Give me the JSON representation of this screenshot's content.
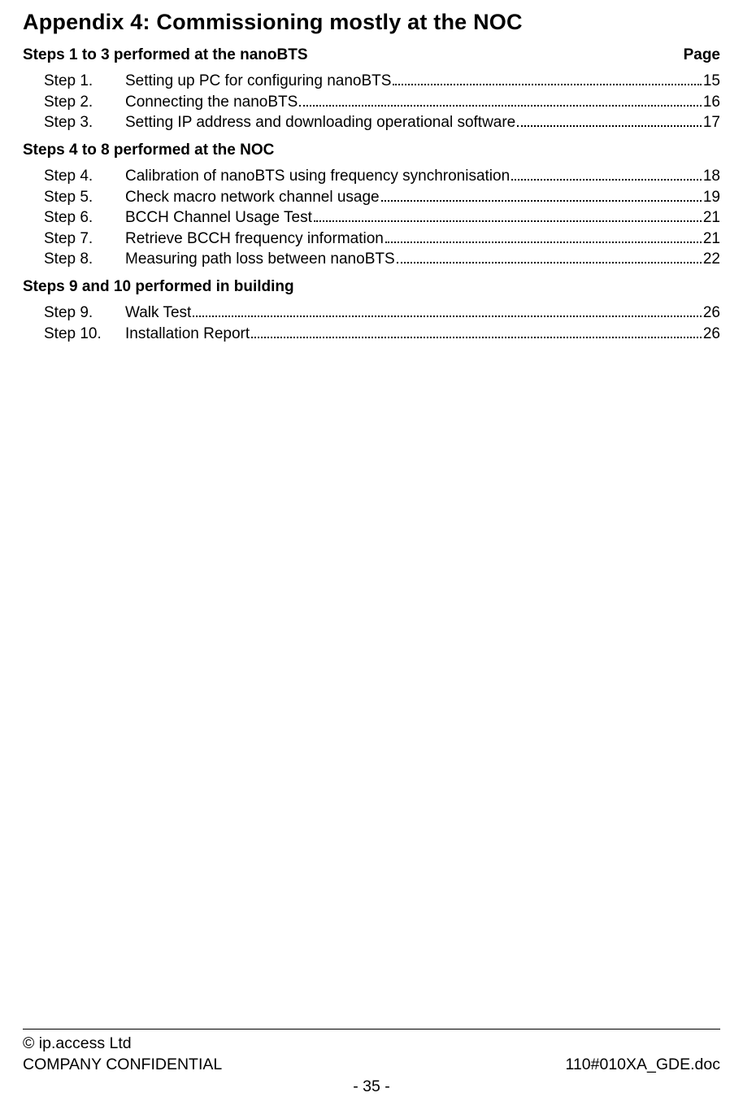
{
  "title": "Appendix 4:  Commissioning mostly at the NOC",
  "page_label": "Page",
  "sections": [
    {
      "heading": "Steps 1 to 3 performed at the nanoBTS",
      "show_page_label": true,
      "items": [
        {
          "step": "Step 1.",
          "title": "Setting up PC for configuring nanoBTS",
          "page": "15"
        },
        {
          "step": "Step 2.",
          "title": "Connecting the nanoBTS",
          "page": "16"
        },
        {
          "step": "Step 3.",
          "title": "Setting IP address and downloading operational software",
          "page": "17"
        }
      ]
    },
    {
      "heading": "Steps 4 to 8 performed at the NOC",
      "show_page_label": false,
      "items": [
        {
          "step": "Step 4.",
          "title": "Calibration of nanoBTS using frequency synchronisation",
          "page": "18"
        },
        {
          "step": "Step 5.",
          "title": "Check macro network channel usage",
          "page": "19"
        },
        {
          "step": "Step 6.",
          "title": "BCCH Channel Usage Test",
          "page": "21"
        },
        {
          "step": "Step 7.",
          "title": "Retrieve BCCH frequency information",
          "page": " 21"
        },
        {
          "step": "Step 8.",
          "title": "Measuring path loss between nanoBTS",
          "page": "22"
        }
      ]
    },
    {
      "heading": "Steps 9 and 10 performed in building",
      "show_page_label": false,
      "items": [
        {
          "step": "Step 9.",
          "title": "Walk Test",
          "page": "26"
        },
        {
          "step": "Step 10.",
          "title": "Installation Report",
          "page": "26"
        }
      ]
    }
  ],
  "footer": {
    "copyright": "© ip.access Ltd",
    "confidential": "COMPANY CONFIDENTIAL",
    "docref": "110#010XA_GDE.doc",
    "pagenum": "- 35 -"
  }
}
